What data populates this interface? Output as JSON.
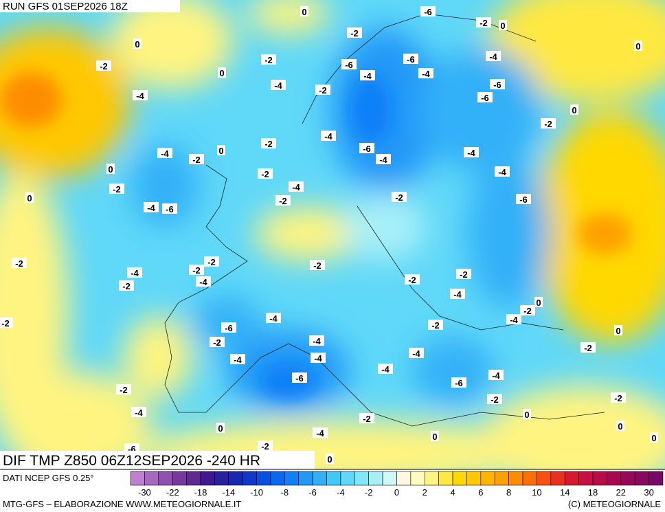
{
  "header": {
    "run": "RUN GFS 01SEP2026 18Z"
  },
  "title": "DIF TMP Z850 06Z12SEP2026 -240 HR",
  "source": "DATI NCEP GFS 0.25°",
  "footer_left": "MTG-GFS – ELABORAZIONE WWW.METEOGIORNALE.IT",
  "footer_right": "(C) METEOGIORNALE",
  "colorbar": {
    "colors": [
      "#c080d0",
      "#a868c0",
      "#9050b0",
      "#7838a0",
      "#602890",
      "#401890",
      "#2820a0",
      "#1828b0",
      "#1038c8",
      "#0850e0",
      "#0868f0",
      "#1080f8",
      "#2098f8",
      "#30b0f8",
      "#40c8f8",
      "#60d8f8",
      "#80e8f8",
      "#a8f0f8",
      "#d0f8f8",
      "#fff8e0",
      "#fffcc0",
      "#fff480",
      "#ffe840",
      "#ffd800",
      "#ffc800",
      "#ffb400",
      "#ffa000",
      "#ff8c00",
      "#ff7000",
      "#f85010",
      "#e83020",
      "#d81830",
      "#c81040",
      "#b80c48",
      "#a80850",
      "#980858",
      "#880860",
      "#780868"
    ],
    "ticks": [
      -30,
      -22,
      -18,
      -14,
      -10,
      -8,
      -6,
      -4,
      -2,
      0,
      2,
      4,
      6,
      8,
      10,
      14,
      18,
      22,
      30
    ]
  },
  "contour_labels": [
    0,
    -6,
    -2,
    0,
    -2,
    0,
    0,
    -2,
    -6,
    -6,
    -4,
    -2,
    0,
    -4,
    -4,
    -4,
    -2,
    -6,
    -6,
    -4,
    0,
    -2,
    -4,
    -2,
    -6,
    -4,
    0,
    -2,
    -4,
    -4,
    0,
    -2,
    -4,
    -4,
    -2,
    0,
    -2,
    -2,
    -6,
    -4,
    -6,
    -2,
    -2,
    -2,
    -2,
    -4,
    -2,
    -4,
    -2,
    -2,
    -4,
    0,
    -2,
    -4,
    -2,
    -4,
    -2,
    -6,
    0,
    -2,
    -4,
    -2,
    -4,
    -4,
    -4,
    -6,
    -4,
    -4,
    -6,
    -2,
    -2,
    -2,
    -4,
    0,
    -2,
    0,
    0,
    -4,
    0,
    0,
    -2,
    -6,
    0
  ]
}
